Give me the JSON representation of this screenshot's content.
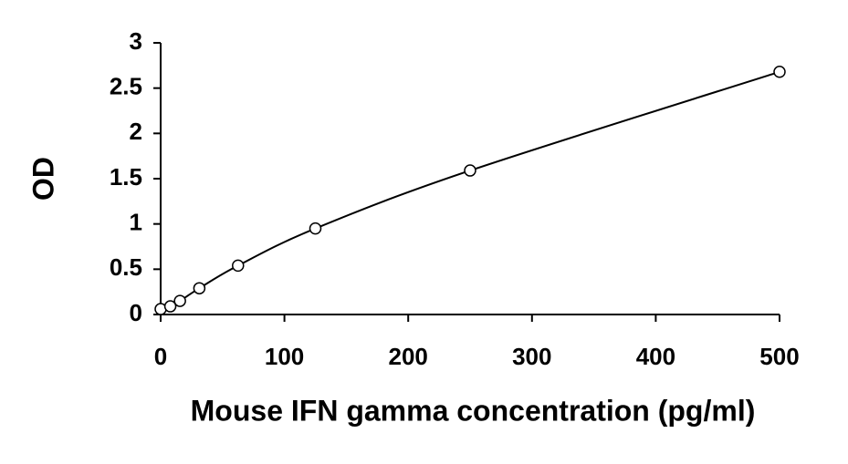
{
  "chart_data": {
    "type": "scatter",
    "x_label": "Mouse IFN gamma concentration (pg/ml)",
    "y_label": "OD",
    "x": [
      0,
      7.8,
      15.6,
      31.25,
      62.5,
      125,
      250,
      500
    ],
    "series": [
      {
        "color": "#000000",
        "values": [
          0.06,
          0.09,
          0.15,
          0.29,
          0.54,
          0.95,
          1.59,
          2.68
        ]
      }
    ],
    "xlim": [
      0,
      500
    ],
    "xticks": [
      0,
      100,
      200,
      300,
      400,
      500
    ],
    "ylim": [
      0,
      3
    ],
    "yticks": [
      0,
      0.5,
      1,
      1.5,
      2,
      2.5,
      3
    ],
    "grid": false,
    "fit_curve": true
  }
}
